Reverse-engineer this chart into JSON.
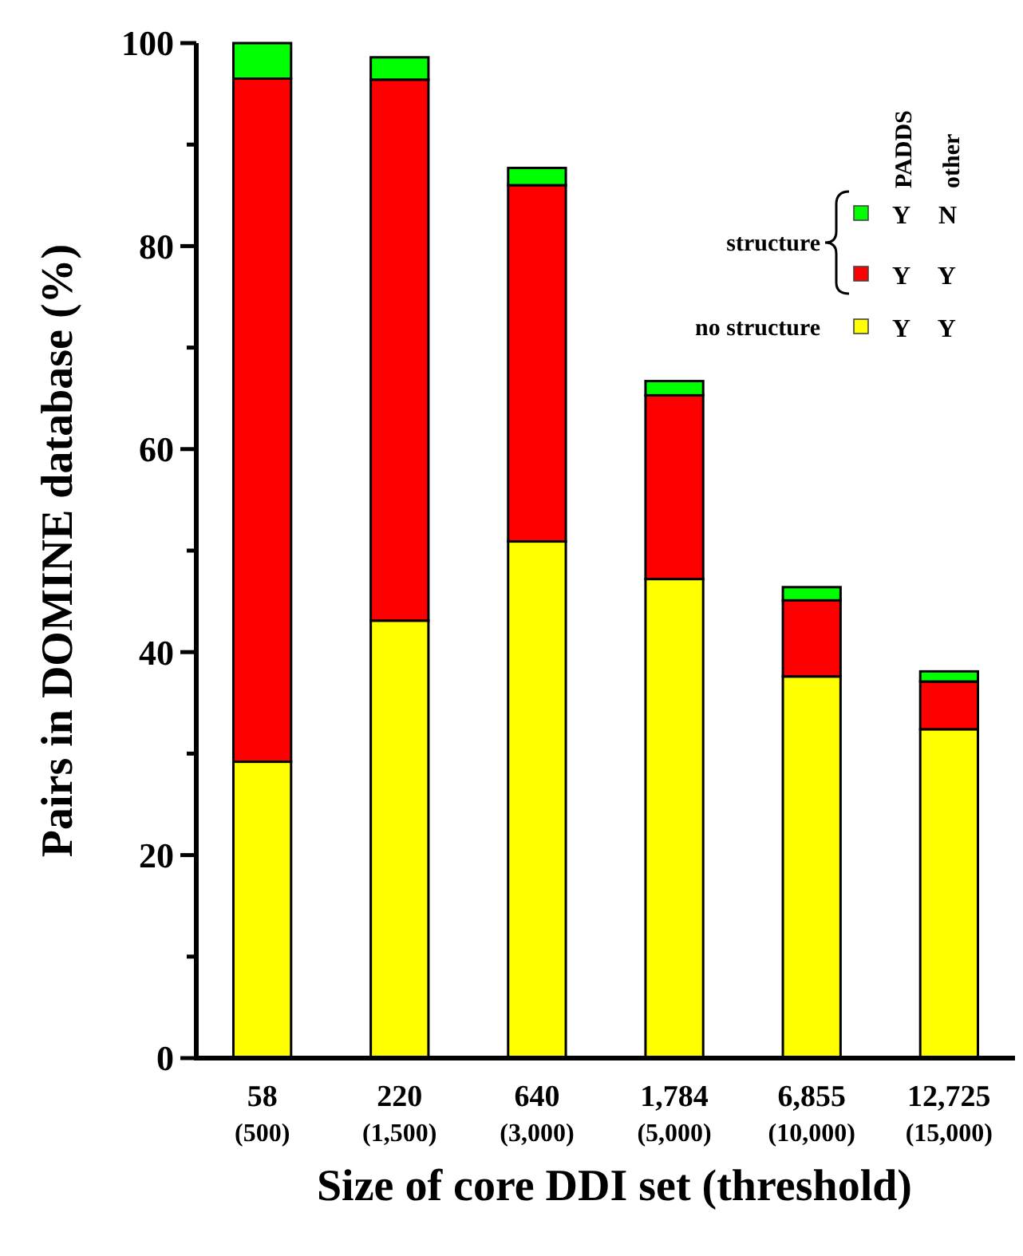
{
  "chart_data": {
    "type": "bar",
    "stacked": true,
    "xlabel": "Size of core DDI set (threshold)",
    "ylabel": "Pairs in DOMINE database (%)",
    "categories": [
      "58\n(500)",
      "220\n(1,500)",
      "640\n(3,000)",
      "1,784\n(5,000)",
      "6,855\n(10,000)",
      "12,725\n(15,000)"
    ],
    "series": [
      {
        "name": "Y Y",
        "color": "#ffff00",
        "values": [
          29.2,
          43.1,
          50.9,
          47.2,
          37.6,
          32.4
        ]
      },
      {
        "name": "Y Y",
        "color": "#ff0000",
        "values": [
          67.3,
          53.3,
          35.1,
          18.1,
          7.5,
          4.7
        ]
      },
      {
        "name": "Y N",
        "color": "#00ff00",
        "values": [
          3.5,
          2.2,
          1.7,
          1.4,
          1.3,
          1.0
        ]
      }
    ],
    "ylim": [
      0,
      100
    ],
    "yticks": [
      0,
      {
        "value": 10,
        "label": null
      },
      20,
      {
        "value": 30,
        "label": null
      },
      40,
      {
        "value": 50,
        "label": null
      },
      60,
      {
        "value": 70,
        "label": null
      },
      80,
      {
        "value": 90,
        "label": null
      },
      100
    ],
    "legend": "top right",
    "grid": false,
    "annotations": [
      "PADDS",
      "other",
      "structure",
      "no structure"
    ]
  }
}
